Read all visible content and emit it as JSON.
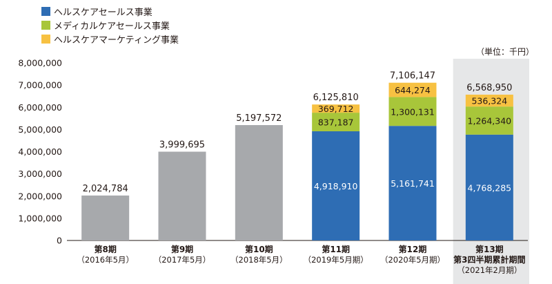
{
  "legend": [
    {
      "label": "ヘルスケアセールス事業",
      "color": "#2e6db4"
    },
    {
      "label": "メディカルケアセールス事業",
      "color": "#a8c63a"
    },
    {
      "label": "ヘルスケアマーケティング事業",
      "color": "#f7c142"
    }
  ],
  "unit_label": "（単位：千円）",
  "chart_data": {
    "type": "bar",
    "stacked": true,
    "ylim": [
      0,
      8000000
    ],
    "y_ticks": [
      "0",
      "1,000,000",
      "2,000,000",
      "3,000,000",
      "4,000,000",
      "5,000,000",
      "6,000,000",
      "7,000,000",
      "8,000,000"
    ],
    "y_tick_values": [
      0,
      1000000,
      2000000,
      3000000,
      4000000,
      5000000,
      6000000,
      7000000,
      8000000
    ],
    "highlight_index": 5,
    "colors": {
      "total_only": "#a7a9ac",
      "highlight_bg": "#e6e7e8"
    },
    "categories": [
      {
        "lines": [
          "第8期",
          "（2016年5月）"
        ]
      },
      {
        "lines": [
          "第9期",
          "（2017年5月）"
        ]
      },
      {
        "lines": [
          "第10期",
          "（2018年5月）"
        ]
      },
      {
        "lines": [
          "第11期",
          "（2019年5月期）"
        ]
      },
      {
        "lines": [
          "第12期",
          "（2020年5月期）"
        ]
      },
      {
        "lines": [
          "第13期",
          "第3四半期累計期間",
          "（2021年2月期）"
        ]
      }
    ],
    "bars": [
      {
        "total": 2024784,
        "total_label": "2,024,784",
        "segments": []
      },
      {
        "total": 3999695,
        "total_label": "3,999,695",
        "segments": []
      },
      {
        "total": 5197572,
        "total_label": "5,197,572",
        "segments": []
      },
      {
        "total": 6125810,
        "total_label": "6,125,810",
        "segments": [
          {
            "series": 0,
            "value": 4918910,
            "label": "4,918,910"
          },
          {
            "series": 1,
            "value": 837187,
            "label": "837,187"
          },
          {
            "series": 2,
            "value": 369712,
            "label": "369,712"
          }
        ]
      },
      {
        "total": 7106147,
        "total_label": "7,106,147",
        "segments": [
          {
            "series": 0,
            "value": 5161741,
            "label": "5,161,741"
          },
          {
            "series": 1,
            "value": 1300131,
            "label": "1,300,131"
          },
          {
            "series": 2,
            "value": 644274,
            "label": "644,274"
          }
        ]
      },
      {
        "total": 6568950,
        "total_label": "6,568,950",
        "segments": [
          {
            "series": 0,
            "value": 4768285,
            "label": "4,768,285"
          },
          {
            "series": 1,
            "value": 1264340,
            "label": "1,264,340"
          },
          {
            "series": 2,
            "value": 536324,
            "label": "536,324"
          }
        ]
      }
    ]
  }
}
